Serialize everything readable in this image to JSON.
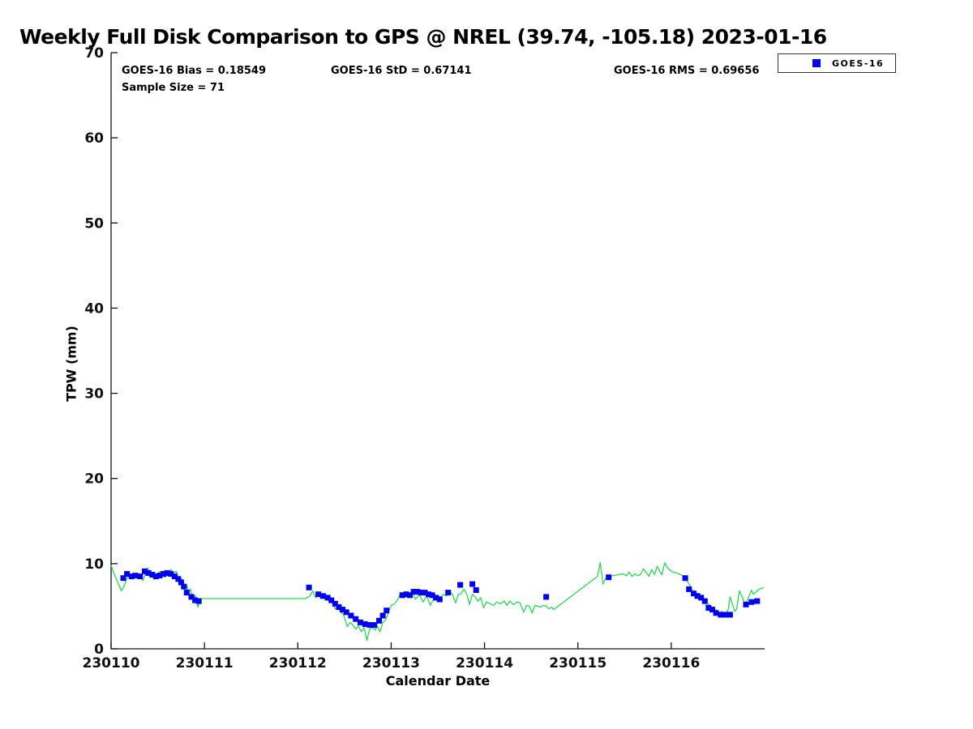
{
  "chart": {
    "stats": {
      "bias": "GOES-16 Bias = 0.18549",
      "std": "GOES-16 StD = 0.67141",
      "rms": "GOES-16 RMS = 0.69656",
      "sample_size": "Sample Size = 71"
    },
    "legend": [
      {
        "label": "GOES-16",
        "marker": "square",
        "marker_color": "#0000ee"
      }
    ]
  },
  "chart_data": {
    "type": "line",
    "title": "Weekly Full Disk Comparison to GPS @ NREL (39.74, -105.18) 2023-01-16",
    "xlabel": "Calendar Date",
    "ylabel": "TPW (mm)",
    "xlim": [
      0,
      7
    ],
    "ylim": [
      0,
      70
    ],
    "grid": false,
    "legend_position": "top-right",
    "x_tick_labels": [
      "230110",
      "230111",
      "230112",
      "230113",
      "230114",
      "230115",
      "230116"
    ],
    "y_ticks": [
      0,
      10,
      20,
      30,
      40,
      50,
      60,
      70
    ],
    "series": [
      {
        "name": "GPS",
        "type": "line",
        "color": "#2bd455",
        "points": [
          [
            0.0,
            9.8
          ],
          [
            0.04,
            8.6
          ],
          [
            0.08,
            7.6
          ],
          [
            0.11,
            6.8
          ],
          [
            0.14,
            7.4
          ],
          [
            0.17,
            8.3
          ],
          [
            0.2,
            8.6
          ],
          [
            0.23,
            8.8
          ],
          [
            0.26,
            8.3
          ],
          [
            0.29,
            8.6
          ],
          [
            0.32,
            8.7
          ],
          [
            0.34,
            8.0
          ],
          [
            0.37,
            8.9
          ],
          [
            0.39,
            9.5
          ],
          [
            0.42,
            8.9
          ],
          [
            0.45,
            8.5
          ],
          [
            0.47,
            8.2
          ],
          [
            0.5,
            8.7
          ],
          [
            0.53,
            9.1
          ],
          [
            0.55,
            8.6
          ],
          [
            0.58,
            8.4
          ],
          [
            0.61,
            8.8
          ],
          [
            0.64,
            9.3
          ],
          [
            0.67,
            8.9
          ],
          [
            0.7,
            9.1
          ],
          [
            0.73,
            7.8
          ],
          [
            0.76,
            8.2
          ],
          [
            0.79,
            7.2
          ],
          [
            0.81,
            7.5
          ],
          [
            0.83,
            6.6
          ],
          [
            0.85,
            7.0
          ],
          [
            0.88,
            5.6
          ],
          [
            0.9,
            6.3
          ],
          [
            0.93,
            4.9
          ],
          [
            0.96,
            5.9
          ],
          [
            1.0,
            5.9
          ],
          [
            2.08,
            5.9
          ],
          [
            2.13,
            6.2
          ],
          [
            2.16,
            6.8
          ],
          [
            2.19,
            6.0
          ],
          [
            2.22,
            6.6
          ],
          [
            2.25,
            6.1
          ],
          [
            2.28,
            6.3
          ],
          [
            2.31,
            6.1
          ],
          [
            2.34,
            5.8
          ],
          [
            2.37,
            5.4
          ],
          [
            2.4,
            4.7
          ],
          [
            2.43,
            4.9
          ],
          [
            2.46,
            4.3
          ],
          [
            2.49,
            4.0
          ],
          [
            2.53,
            2.6
          ],
          [
            2.56,
            3.1
          ],
          [
            2.59,
            2.8
          ],
          [
            2.62,
            2.3
          ],
          [
            2.65,
            2.7
          ],
          [
            2.68,
            2.0
          ],
          [
            2.71,
            2.5
          ],
          [
            2.74,
            1.0
          ],
          [
            2.77,
            2.3
          ],
          [
            2.8,
            2.5
          ],
          [
            2.83,
            2.2
          ],
          [
            2.85,
            2.7
          ],
          [
            2.88,
            2.0
          ],
          [
            2.91,
            3.1
          ],
          [
            2.94,
            3.4
          ],
          [
            2.97,
            4.2
          ],
          [
            3.0,
            5.1
          ],
          [
            3.04,
            5.3
          ],
          [
            3.07,
            5.8
          ],
          [
            3.1,
            6.5
          ],
          [
            3.13,
            6.0
          ],
          [
            3.17,
            6.4
          ],
          [
            3.2,
            6.3
          ],
          [
            3.23,
            6.6
          ],
          [
            3.26,
            5.8
          ],
          [
            3.3,
            6.4
          ],
          [
            3.34,
            5.5
          ],
          [
            3.38,
            6.2
          ],
          [
            3.42,
            5.1
          ],
          [
            3.46,
            6.0
          ],
          [
            3.49,
            6.2
          ],
          [
            3.53,
            6.1
          ],
          [
            3.56,
            6.4
          ],
          [
            3.59,
            6.2
          ],
          [
            3.62,
            6.9
          ],
          [
            3.66,
            6.3
          ],
          [
            3.69,
            5.4
          ],
          [
            3.72,
            6.4
          ],
          [
            3.75,
            6.5
          ],
          [
            3.78,
            7.0
          ],
          [
            3.81,
            6.4
          ],
          [
            3.84,
            5.2
          ],
          [
            3.87,
            6.4
          ],
          [
            3.9,
            6.1
          ],
          [
            3.93,
            5.6
          ],
          [
            3.96,
            6.0
          ],
          [
            3.99,
            4.8
          ],
          [
            4.02,
            5.5
          ],
          [
            4.06,
            5.3
          ],
          [
            4.1,
            5.1
          ],
          [
            4.13,
            5.5
          ],
          [
            4.17,
            5.3
          ],
          [
            4.21,
            5.6
          ],
          [
            4.24,
            5.1
          ],
          [
            4.27,
            5.6
          ],
          [
            4.31,
            5.2
          ],
          [
            4.35,
            5.5
          ],
          [
            4.38,
            5.4
          ],
          [
            4.42,
            4.3
          ],
          [
            4.45,
            5.1
          ],
          [
            4.48,
            5.0
          ],
          [
            4.51,
            4.2
          ],
          [
            4.54,
            5.1
          ],
          [
            4.57,
            5.0
          ],
          [
            4.6,
            4.9
          ],
          [
            4.63,
            5.1
          ],
          [
            4.66,
            5.0
          ],
          [
            4.69,
            4.7
          ],
          [
            4.72,
            4.9
          ],
          [
            4.74,
            4.6
          ],
          [
            5.21,
            8.5
          ],
          [
            5.24,
            10.1
          ],
          [
            5.27,
            7.6
          ],
          [
            5.3,
            8.3
          ],
          [
            5.33,
            8.5
          ],
          [
            5.38,
            8.6
          ],
          [
            5.43,
            8.7
          ],
          [
            5.48,
            8.8
          ],
          [
            5.52,
            8.6
          ],
          [
            5.55,
            9.0
          ],
          [
            5.58,
            8.5
          ],
          [
            5.61,
            8.8
          ],
          [
            5.64,
            8.6
          ],
          [
            5.67,
            8.7
          ],
          [
            5.7,
            9.4
          ],
          [
            5.73,
            9.0
          ],
          [
            5.76,
            8.5
          ],
          [
            5.79,
            9.3
          ],
          [
            5.82,
            8.7
          ],
          [
            5.85,
            9.7
          ],
          [
            5.88,
            9.0
          ],
          [
            5.9,
            8.7
          ],
          [
            5.93,
            10.1
          ],
          [
            5.96,
            9.5
          ],
          [
            5.99,
            9.2
          ],
          [
            6.02,
            9.0
          ],
          [
            6.06,
            8.9
          ],
          [
            6.1,
            8.7
          ],
          [
            6.13,
            8.5
          ],
          [
            6.17,
            8.0
          ],
          [
            6.2,
            7.4
          ],
          [
            6.23,
            6.8
          ],
          [
            6.26,
            6.6
          ],
          [
            6.29,
            6.4
          ],
          [
            6.32,
            6.1
          ],
          [
            6.35,
            5.8
          ],
          [
            6.38,
            4.9
          ],
          [
            6.4,
            5.3
          ],
          [
            6.43,
            4.7
          ],
          [
            6.46,
            4.3
          ],
          [
            6.48,
            4.6
          ],
          [
            6.51,
            3.9
          ],
          [
            6.54,
            4.4
          ],
          [
            6.56,
            3.7
          ],
          [
            6.58,
            4.1
          ],
          [
            6.61,
            4.6
          ],
          [
            6.63,
            6.1
          ],
          [
            6.66,
            5.1
          ],
          [
            6.68,
            4.4
          ],
          [
            6.7,
            4.7
          ],
          [
            6.73,
            6.8
          ],
          [
            6.76,
            6.1
          ],
          [
            6.78,
            5.5
          ],
          [
            6.8,
            5.3
          ],
          [
            6.83,
            6.1
          ],
          [
            6.86,
            6.9
          ],
          [
            6.88,
            6.4
          ],
          [
            6.91,
            6.7
          ],
          [
            6.94,
            7.0
          ],
          [
            6.97,
            7.1
          ],
          [
            6.99,
            7.2
          ]
        ]
      },
      {
        "name": "GOES-16",
        "type": "scatter",
        "marker": "square",
        "color": "#0000ee",
        "points": [
          [
            0.13,
            8.3
          ],
          [
            0.17,
            8.8
          ],
          [
            0.22,
            8.5
          ],
          [
            0.26,
            8.6
          ],
          [
            0.31,
            8.5
          ],
          [
            0.36,
            9.1
          ],
          [
            0.4,
            8.9
          ],
          [
            0.44,
            8.7
          ],
          [
            0.48,
            8.5
          ],
          [
            0.52,
            8.6
          ],
          [
            0.56,
            8.8
          ],
          [
            0.6,
            8.9
          ],
          [
            0.64,
            8.8
          ],
          [
            0.68,
            8.5
          ],
          [
            0.72,
            8.2
          ],
          [
            0.75,
            7.8
          ],
          [
            0.78,
            7.3
          ],
          [
            0.81,
            6.6
          ],
          [
            0.86,
            6.1
          ],
          [
            0.9,
            5.7
          ],
          [
            0.94,
            5.6
          ],
          [
            2.12,
            7.2
          ],
          [
            2.22,
            6.4
          ],
          [
            2.27,
            6.2
          ],
          [
            2.32,
            6.0
          ],
          [
            2.36,
            5.7
          ],
          [
            2.4,
            5.3
          ],
          [
            2.44,
            4.9
          ],
          [
            2.48,
            4.6
          ],
          [
            2.52,
            4.3
          ],
          [
            2.57,
            3.9
          ],
          [
            2.62,
            3.5
          ],
          [
            2.67,
            3.1
          ],
          [
            2.72,
            2.9
          ],
          [
            2.77,
            2.8
          ],
          [
            2.82,
            2.8
          ],
          [
            2.87,
            3.3
          ],
          [
            2.91,
            3.9
          ],
          [
            2.95,
            4.5
          ],
          [
            3.12,
            6.3
          ],
          [
            3.16,
            6.4
          ],
          [
            3.2,
            6.3
          ],
          [
            3.24,
            6.7
          ],
          [
            3.28,
            6.7
          ],
          [
            3.32,
            6.6
          ],
          [
            3.36,
            6.6
          ],
          [
            3.4,
            6.4
          ],
          [
            3.44,
            6.3
          ],
          [
            3.48,
            6.0
          ],
          [
            3.52,
            5.8
          ],
          [
            3.61,
            6.6
          ],
          [
            3.74,
            7.5
          ],
          [
            3.87,
            7.6
          ],
          [
            3.91,
            6.9
          ],
          [
            4.66,
            6.1
          ],
          [
            5.33,
            8.4
          ],
          [
            6.15,
            8.3
          ],
          [
            6.19,
            7.0
          ],
          [
            6.24,
            6.5
          ],
          [
            6.28,
            6.2
          ],
          [
            6.32,
            6.0
          ],
          [
            6.36,
            5.6
          ],
          [
            6.4,
            4.8
          ],
          [
            6.44,
            4.6
          ],
          [
            6.48,
            4.2
          ],
          [
            6.53,
            4.0
          ],
          [
            6.58,
            4.0
          ],
          [
            6.63,
            4.0
          ],
          [
            6.8,
            5.2
          ],
          [
            6.86,
            5.5
          ],
          [
            6.92,
            5.6
          ]
        ]
      }
    ]
  }
}
